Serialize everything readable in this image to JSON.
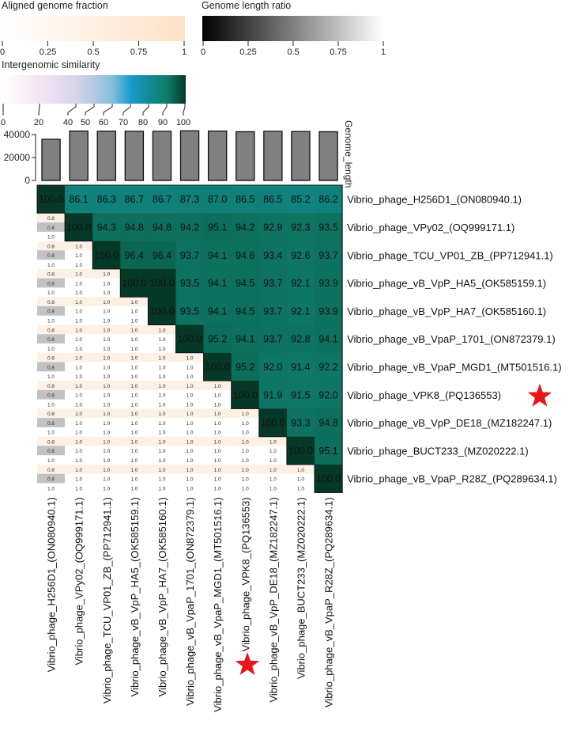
{
  "chart_data": {
    "type": "heatmap",
    "legends": {
      "aligned_fraction": {
        "title": "Aligned genome fraction",
        "ticks": [
          "0",
          "0.25",
          "0.5",
          "0.75",
          "1"
        ],
        "color_low": "#ffffff",
        "color_high": "#fde0c5"
      },
      "length_ratio": {
        "title": "Genome length ratio",
        "ticks": [
          "0",
          "0.25",
          "0.5",
          "0.75",
          "1"
        ],
        "color_low": "#000000",
        "color_high": "#ffffff"
      },
      "similarity": {
        "title": "Intergenomic similarity",
        "ticks": [
          "0",
          "20",
          "40",
          "50",
          "60",
          "70",
          "80",
          "90",
          "100"
        ],
        "colors": [
          "#ffffff",
          "#f3e6f2",
          "#d8d4ea",
          "#b6c8e2",
          "#84bfdc",
          "#1a9ccb",
          "#128a95",
          "#0f7b6a",
          "#0a5c49",
          "#053826"
        ]
      }
    },
    "phages": [
      "Vibrio_phage_H256D1_(ON080940.1)",
      "Vibrio_phage_VPy02_(OQ999171.1)",
      "Vibrio_phage_TCU_VP01_ZB_(PP712941.1)",
      "Vibrio_phage_vB_VpP_HA5_(OK585159.1)",
      "Vibrio_phage_vB_VpP_HA7_(OK585160.1)",
      "Vibrio_phage_vB_VpaP_1701_(ON872379.1)",
      "Vibrio_phage_vB_VpaP_MGD1_(MT501516.1)",
      "Vibrio_phage_VPK8_(PQ136553)",
      "Vibrio_phage_vB_VpP_DE18_(MZ182247.1)",
      "Vibrio_phage_BUCT233_(MZ020222.1)",
      "Vibrio_phage_vB_VpaP_R28Z_(PQ289634.1)"
    ],
    "highlighted_phage_index": 7,
    "genome_length": {
      "label": "Genome_length",
      "ticks": [
        "0",
        "20000",
        "40000"
      ],
      "ylim": [
        0,
        45000
      ],
      "values": [
        36000,
        43200,
        43100,
        43000,
        43000,
        43400,
        43200,
        42600,
        43000,
        42800,
        42600
      ]
    },
    "similarity_matrix": [
      [
        "100.0",
        "86.1",
        "86.3",
        "86.7",
        "86.7",
        "87.3",
        "87.0",
        "86.5",
        "86.5",
        "85.2",
        "86.2"
      ],
      [
        "",
        "100.0",
        "94.3",
        "94.8",
        "94.8",
        "94.2",
        "95.1",
        "94.2",
        "92.9",
        "92.3",
        "93.5"
      ],
      [
        "",
        "",
        "100.0",
        "96.4",
        "96.4",
        "93.7",
        "94.1",
        "94.6",
        "93.4",
        "92.6",
        "93.7"
      ],
      [
        "",
        "",
        "",
        "100.0",
        "100.0",
        "93.5",
        "94.1",
        "94.5",
        "93.7",
        "92.1",
        "93.9"
      ],
      [
        "",
        "",
        "",
        "",
        "100.0",
        "93.5",
        "94.1",
        "94.5",
        "93.7",
        "92.1",
        "93.9"
      ],
      [
        "",
        "",
        "",
        "",
        "",
        "100.0",
        "95.2",
        "94.1",
        "93.7",
        "92.8",
        "94.1"
      ],
      [
        "",
        "",
        "",
        "",
        "",
        "",
        "100.0",
        "95.2",
        "92.0",
        "91.4",
        "92.2"
      ],
      [
        "",
        "",
        "",
        "",
        "",
        "",
        "",
        "100.0",
        "91.9",
        "91.5",
        "92.0"
      ],
      [
        "",
        "",
        "",
        "",
        "",
        "",
        "",
        "",
        "100.0",
        "93.3",
        "94.8"
      ],
      [
        "",
        "",
        "",
        "",
        "",
        "",
        "",
        "",
        "",
        "100.0",
        "95.1"
      ],
      [
        "",
        "",
        "",
        "",
        "",
        "",
        "",
        "",
        "",
        "",
        "100.0"
      ]
    ],
    "lower_triangle_values": [
      "0.8",
      "1.0"
    ]
  }
}
